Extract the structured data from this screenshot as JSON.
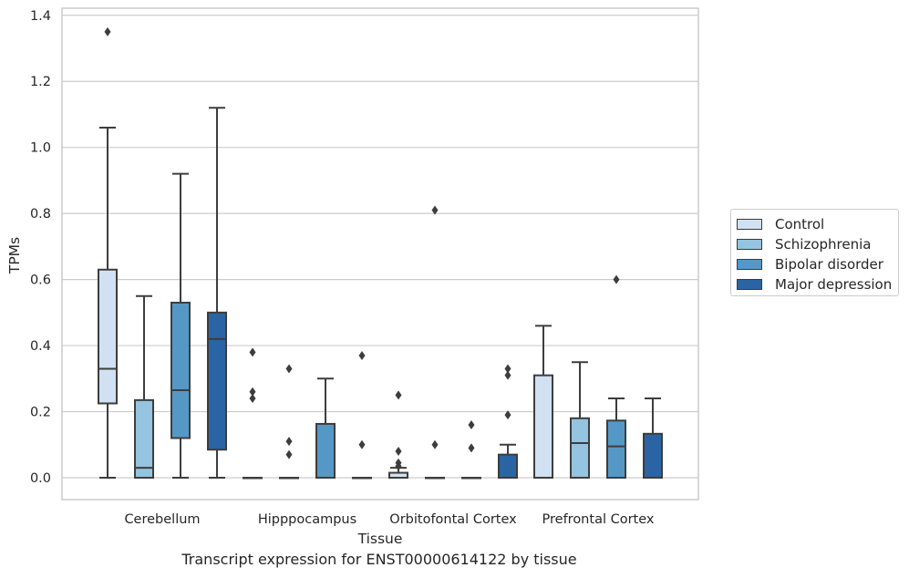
{
  "caption": "Transcript expression for ENST00000614122 by tissue",
  "chart_data": {
    "type": "box",
    "title": "",
    "xlabel": "Tissue",
    "ylabel": "TPMs",
    "ylim": [
      -0.065,
      1.42
    ],
    "yticks": [
      "0.0",
      "0.2",
      "0.4",
      "0.6",
      "0.8",
      "1.0",
      "1.2",
      "1.4"
    ],
    "grid": "horizontal",
    "legend_position": "right",
    "categories": [
      "Cerebellum",
      "Hipppocampus",
      "Orbitofontal Cortex",
      "Prefrontal Cortex"
    ],
    "series": [
      {
        "name": "Control",
        "color": "#d0e1f2",
        "boxes": [
          {
            "min": 0.0,
            "q1": 0.225,
            "median": 0.33,
            "q3": 0.63,
            "max": 1.06,
            "outliers": [
              1.35
            ]
          },
          {
            "min": 0.0,
            "q1": 0.0,
            "median": 0.0,
            "q3": 0.0,
            "max": 0.0,
            "outliers": [
              0.38,
              0.26,
              0.24
            ]
          },
          {
            "min": 0.0,
            "q1": 0.0,
            "median": 0.0,
            "q3": 0.015,
            "max": 0.03,
            "outliers": [
              0.25,
              0.08,
              0.045,
              0.035
            ]
          },
          {
            "min": 0.0,
            "q1": 0.0,
            "median": 0.0,
            "q3": 0.31,
            "max": 0.46,
            "outliers": []
          }
        ]
      },
      {
        "name": "Schizophrenia",
        "color": "#94c4df",
        "boxes": [
          {
            "min": 0.0,
            "q1": 0.0,
            "median": 0.03,
            "q3": 0.235,
            "max": 0.55,
            "outliers": []
          },
          {
            "min": 0.0,
            "q1": 0.0,
            "median": 0.0,
            "q3": 0.0,
            "max": 0.0,
            "outliers": [
              0.33,
              0.11,
              0.07
            ]
          },
          {
            "min": 0.0,
            "q1": 0.0,
            "median": 0.0,
            "q3": 0.0,
            "max": 0.0,
            "outliers": [
              0.81,
              0.1
            ]
          },
          {
            "min": 0.0,
            "q1": 0.0,
            "median": 0.105,
            "q3": 0.18,
            "max": 0.35,
            "outliers": []
          }
        ]
      },
      {
        "name": "Bipolar disorder",
        "color": "#5598c6",
        "boxes": [
          {
            "min": 0.0,
            "q1": 0.12,
            "median": 0.265,
            "q3": 0.53,
            "max": 0.92,
            "outliers": []
          },
          {
            "min": 0.0,
            "q1": 0.0,
            "median": 0.0,
            "q3": 0.163,
            "max": 0.3,
            "outliers": []
          },
          {
            "min": 0.0,
            "q1": 0.0,
            "median": 0.0,
            "q3": 0.0,
            "max": 0.0,
            "outliers": [
              0.16,
              0.09
            ]
          },
          {
            "min": 0.0,
            "q1": 0.0,
            "median": 0.095,
            "q3": 0.173,
            "max": 0.24,
            "outliers": [
              0.6
            ]
          }
        ]
      },
      {
        "name": "Major depression",
        "color": "#2a64a4",
        "boxes": [
          {
            "min": 0.0,
            "q1": 0.085,
            "median": 0.42,
            "q3": 0.5,
            "max": 1.12,
            "outliers": []
          },
          {
            "min": 0.0,
            "q1": 0.0,
            "median": 0.0,
            "q3": 0.0,
            "max": 0.0,
            "outliers": [
              0.37,
              0.1
            ]
          },
          {
            "min": 0.0,
            "q1": 0.0,
            "median": 0.0,
            "q3": 0.07,
            "max": 0.1,
            "outliers": [
              0.33,
              0.31,
              0.19
            ]
          },
          {
            "min": 0.0,
            "q1": 0.0,
            "median": 0.0,
            "q3": 0.133,
            "max": 0.24,
            "outliers": []
          }
        ]
      }
    ]
  }
}
